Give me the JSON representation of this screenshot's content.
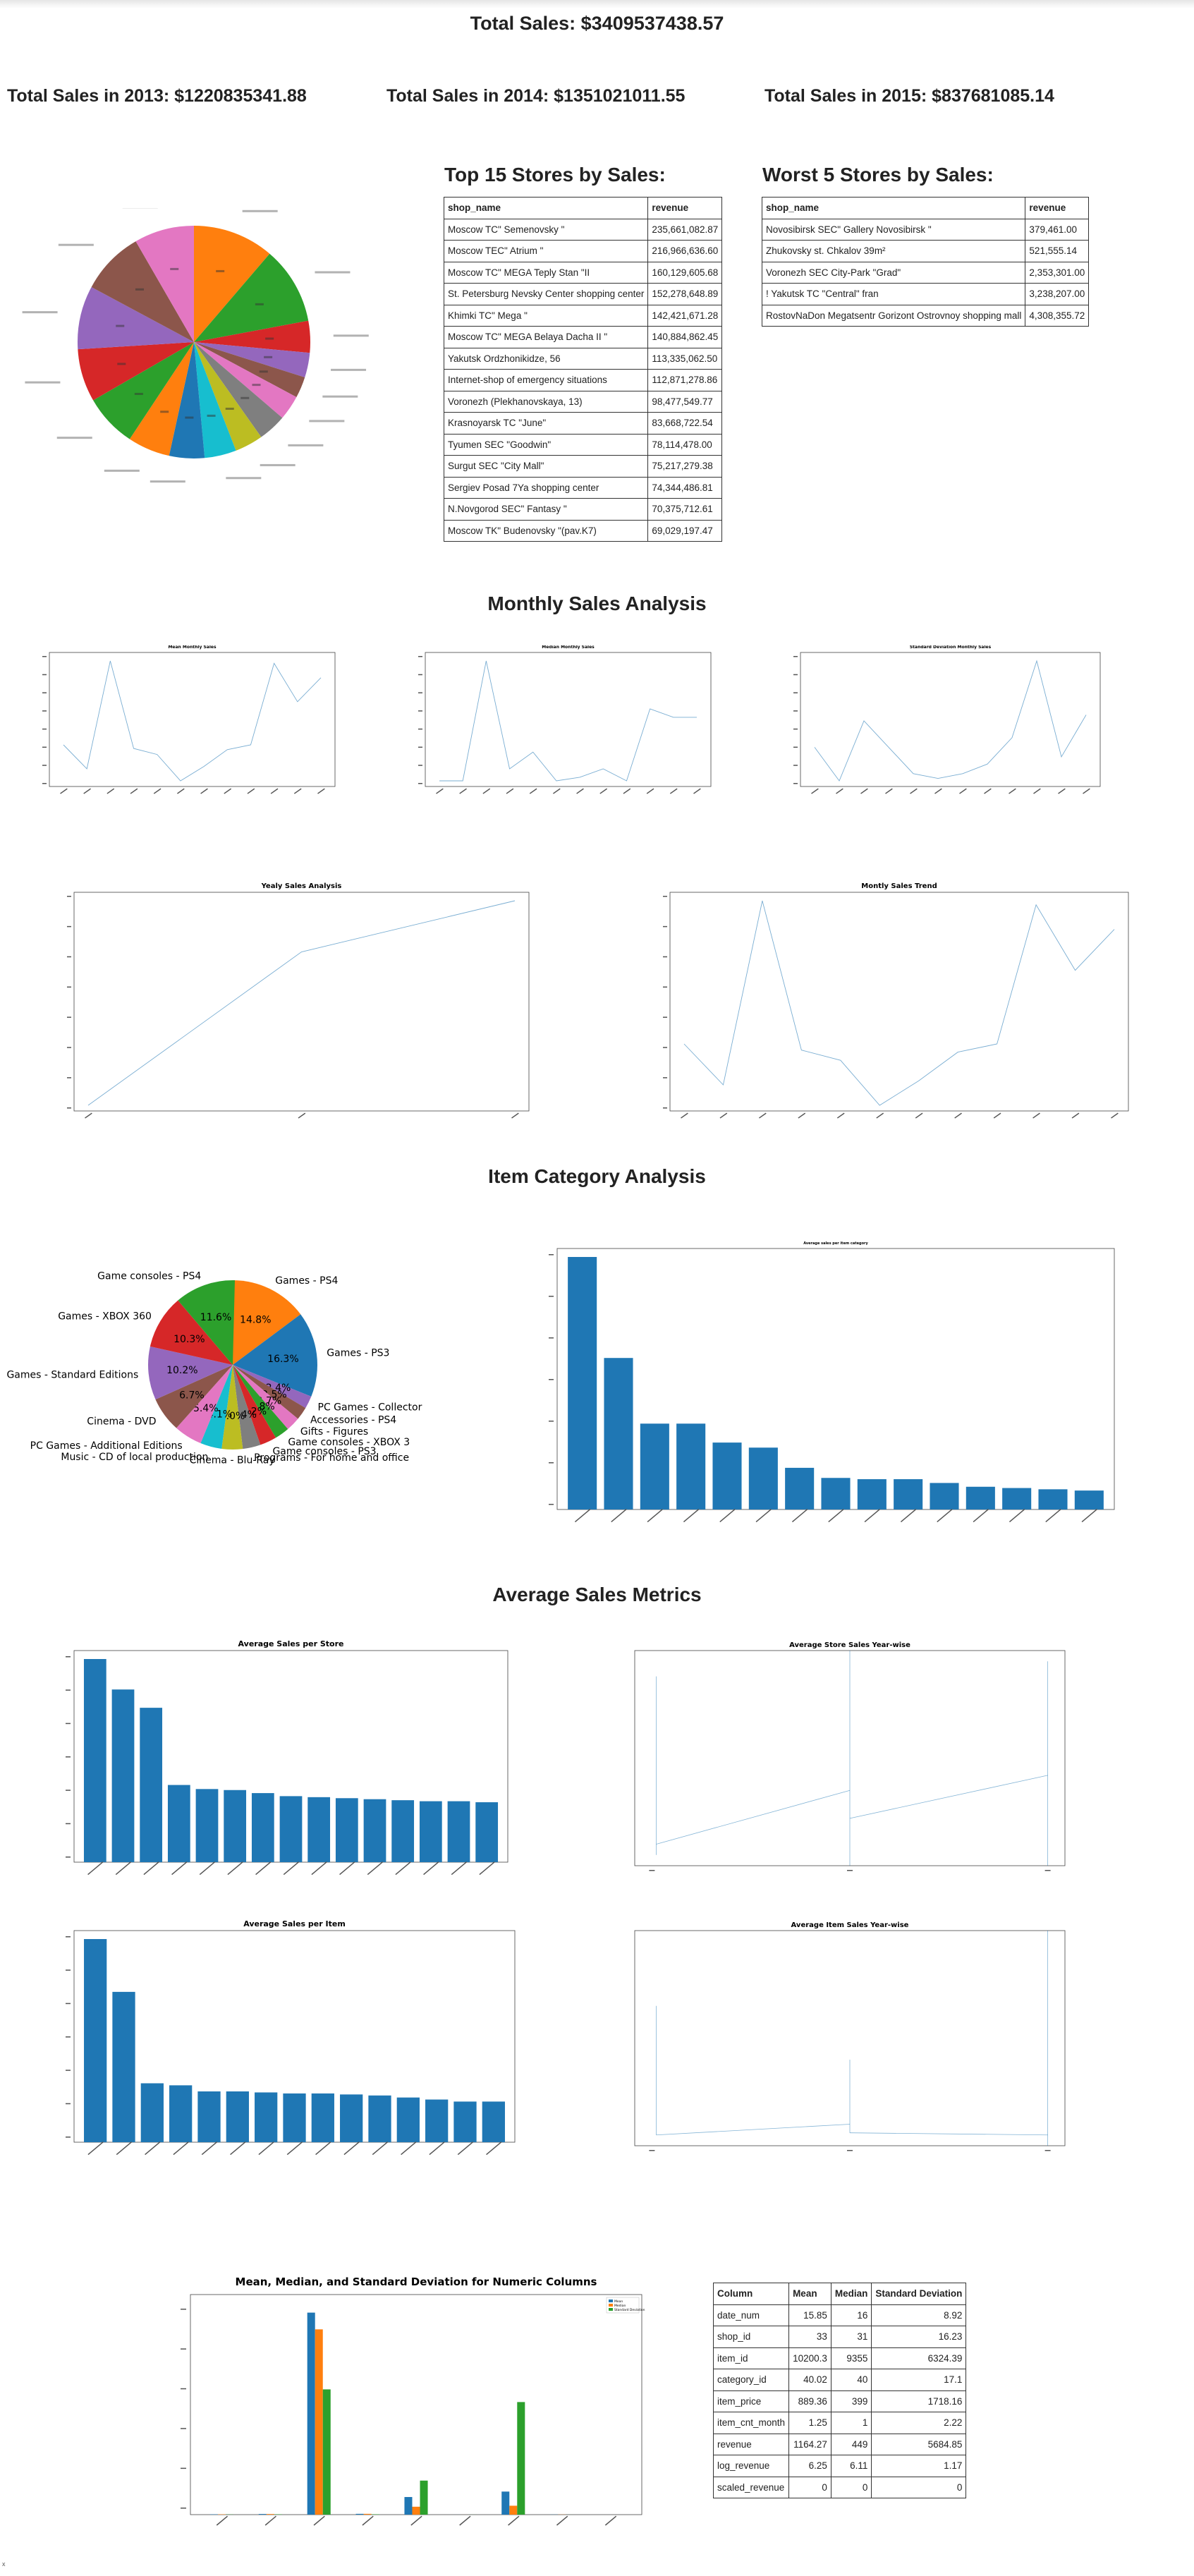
{
  "header": {
    "total_sales": "Total Sales: $3409537438.57",
    "sales_2013": "Total Sales in 2013: $1220835341.88",
    "sales_2014": "Total Sales in 2014: $1351021011.55",
    "sales_2015": "Total Sales in 2015: $837681085.14"
  },
  "top_stores": {
    "title": "Top 15 Stores by Sales:",
    "columns": [
      "shop_name",
      "revenue"
    ],
    "rows": [
      [
        "Moscow TC\" Semenovsky \"",
        "235,661,082.87"
      ],
      [
        "Moscow TEC\" Atrium \"",
        "216,966,636.60"
      ],
      [
        "Moscow TC\" MEGA Teply Stan \"II",
        "160,129,605.68"
      ],
      [
        "St. Petersburg Nevsky Center shopping center",
        "152,278,648.89"
      ],
      [
        "Khimki TC\" Mega \"",
        "142,421,671.28"
      ],
      [
        "Moscow TC\" MEGA Belaya Dacha II \"",
        "140,884,862.45"
      ],
      [
        "Yakutsk Ordzhonikidze, 56",
        "113,335,062.50"
      ],
      [
        "Internet-shop of emergency situations",
        "112,871,278.86"
      ],
      [
        "Voronezh (Plekhanovskaya, 13)",
        "98,477,549.77"
      ],
      [
        "Krasnoyarsk TC \"June\"",
        "83,668,722.54"
      ],
      [
        "Tyumen SEC \"Goodwin\"",
        "78,114,478.00"
      ],
      [
        "Surgut SEC \"City Mall\"",
        "75,217,279.38"
      ],
      [
        "Sergiev Posad 7Ya shopping center",
        "74,344,486.81"
      ],
      [
        "N.Novgorod SEC\" Fantasy \"",
        "70,375,712.61"
      ],
      [
        "Moscow TK\" Budenovsky \"(pav.K7)",
        "69,029,197.47"
      ]
    ]
  },
  "worst_stores": {
    "title": "Worst 5 Stores by Sales:",
    "columns": [
      "shop_name",
      "revenue"
    ],
    "rows": [
      [
        "Novosibirsk SEC\" Gallery Novosibirsk \"",
        "379,461.00"
      ],
      [
        "Zhukovsky st. Chkalov 39m²",
        "521,555.14"
      ],
      [
        "Voronezh SEC City-Park \"Grad\"",
        "2,353,301.00"
      ],
      [
        "! Yakutsk TC \"Central\" fran",
        "3,238,207.00"
      ],
      [
        "RostovNaDon Megatsentr Gorizont Ostrovnoy shopping mall",
        "4,308,355.72"
      ]
    ]
  },
  "sections": {
    "monthly": "Monthly Sales Analysis",
    "category": "Item Category Analysis",
    "average": "Average Sales Metrics"
  },
  "category_pie": {
    "labels": [
      "Games - PS4",
      "Games - PS3",
      "PC Games - Collector",
      "Accessories - PS4",
      "Gifts - Figures",
      "Game consoles - XBOX 3",
      "Game consoles - PS3",
      "Programs - For home and office",
      "Cinema - Blu-Ray",
      "Music - CD of local production",
      "PC Games - Additional Editions",
      "Cinema - DVD",
      "Games - Standard Editions",
      "Games - XBOX 360",
      "Game consoles - PS4"
    ],
    "pct_labels": [
      "14.8%",
      "16.3%",
      "2.4%",
      "2.5%",
      "2.7%",
      "2.8%",
      "3.2%",
      "3.4%",
      "4.0%",
      "4.1%",
      "5.4%",
      "6.7%",
      "10.2%",
      "10.3%",
      "11.6%"
    ]
  },
  "small_titles": {
    "mean_monthly": "Mean Monthly Sales",
    "median_monthly": "Median Monthly Sales",
    "std_monthly": "Standard Deviation Monthly Sales",
    "yearly": "Yealy Sales Analysis",
    "monthly_trend": "Montly Sales Trend",
    "avg_cat": "Average sales per item category",
    "avg_store": "Average Sales per Store",
    "avg_store_year": "Average Store Sales Year-wise",
    "avg_item": "Average Sales per Item",
    "avg_item_year": "Average Item Sales Year-wise",
    "numeric": "Mean, Median, and Standard Deviation for Numeric Columns"
  },
  "numeric_legend": [
    "Mean",
    "Median",
    "Standard Deviation"
  ],
  "stats_table": {
    "columns": [
      "Column",
      "Mean",
      "Median",
      "Standard Deviation"
    ],
    "rows": [
      [
        "date_num",
        "15.85",
        "16",
        "8.92"
      ],
      [
        "shop_id",
        "33",
        "31",
        "16.23"
      ],
      [
        "item_id",
        "10200.3",
        "9355",
        "6324.39"
      ],
      [
        "category_id",
        "40.02",
        "40",
        "17.1"
      ],
      [
        "item_price",
        "889.36",
        "399",
        "1718.16"
      ],
      [
        "item_cnt_month",
        "1.25",
        "1",
        "2.22"
      ],
      [
        "revenue",
        "1164.27",
        "449",
        "5684.85"
      ],
      [
        "log_revenue",
        "6.25",
        "6.11",
        "1.17"
      ],
      [
        "scaled_revenue",
        "0",
        "0",
        "0"
      ]
    ]
  },
  "colors": {
    "c0": "#1f77b4",
    "c1": "#ff7f0e",
    "c2": "#2ca02c",
    "c3": "#d62728",
    "c4": "#9467bd",
    "c5": "#8c564b",
    "c6": "#e377c2",
    "c7": "#7f7f7f",
    "c8": "#bcbd22",
    "c9": "#17becf"
  },
  "footer_mark": "x"
}
